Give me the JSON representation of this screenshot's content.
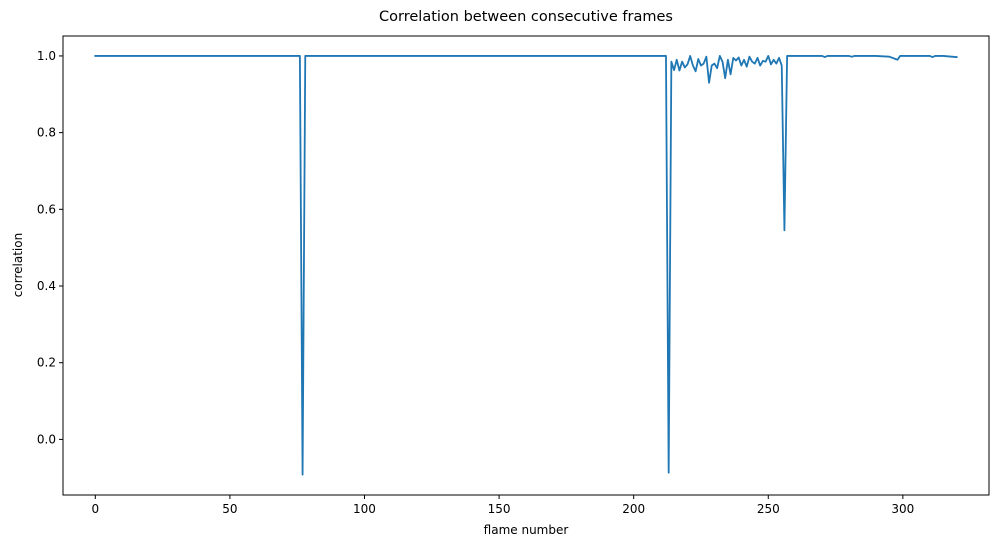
{
  "chart_data": {
    "type": "line",
    "title": "Correlation between consecutive frames",
    "xlabel": "flame number",
    "ylabel": "correlation",
    "xlim": [
      -12,
      332
    ],
    "ylim": [
      -0.145,
      1.052
    ],
    "xticks": [
      0,
      50,
      100,
      150,
      200,
      250,
      300
    ],
    "yticks": [
      0.0,
      0.2,
      0.4,
      0.6,
      0.8,
      1.0
    ],
    "ytick_labels": [
      "0.0",
      "0.2",
      "0.4",
      "0.6",
      "0.8",
      "1.0"
    ],
    "grid": false,
    "legend": false,
    "line_color": "#1f77b4",
    "series": [
      {
        "x": [
          0,
          76,
          77,
          78,
          212,
          213,
          214,
          215,
          216,
          217,
          218,
          219,
          220,
          221,
          222,
          223,
          224,
          225,
          226,
          227,
          228,
          229,
          230,
          231,
          232,
          233,
          234,
          235,
          236,
          237,
          238,
          239,
          240,
          241,
          242,
          243,
          244,
          245,
          246,
          247,
          248,
          249,
          250,
          251,
          252,
          253,
          254,
          255,
          256,
          257,
          270,
          271,
          272,
          280,
          281,
          282,
          290,
          295,
          298,
          299,
          300,
          301,
          305,
          310,
          311,
          312,
          315,
          320
        ],
        "y": [
          1.0,
          1.0,
          -0.092,
          1.0,
          1.0,
          -0.087,
          0.985,
          0.963,
          0.99,
          0.962,
          0.985,
          0.97,
          0.978,
          1.0,
          0.975,
          0.96,
          0.992,
          0.975,
          0.98,
          0.998,
          0.93,
          0.975,
          0.98,
          0.968,
          1.0,
          0.985,
          0.942,
          0.99,
          0.952,
          0.995,
          0.988,
          0.996,
          0.975,
          0.99,
          0.972,
          0.998,
          0.985,
          0.98,
          0.995,
          0.975,
          0.987,
          0.985,
          1.0,
          0.978,
          0.99,
          0.98,
          0.995,
          0.975,
          0.545,
          1.0,
          1.0,
          0.997,
          1.0,
          1.0,
          0.998,
          1.0,
          1.0,
          0.998,
          0.99,
          1.0,
          1.0,
          1.0,
          1.0,
          1.0,
          0.997,
          1.0,
          1.0,
          0.997
        ]
      }
    ]
  }
}
